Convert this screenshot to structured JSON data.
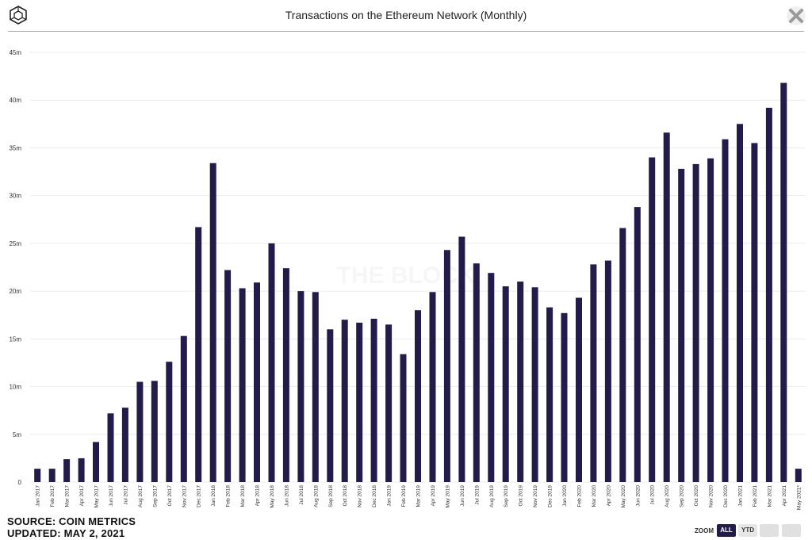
{
  "header": {
    "title": "Transactions on the Ethereum Network (Monthly)",
    "logo_icon": "cube-logo-icon",
    "close_icon": "close-icon"
  },
  "footer": {
    "source": "SOURCE: COIN METRICS",
    "updated": "UPDATED: MAY 2, 2021"
  },
  "zoom": {
    "label": "ZOOM",
    "all_label": "ALL",
    "ytd_label": "YTD"
  },
  "watermark": "THE BLOCK",
  "colors": {
    "bar": "#231c4b",
    "accent": "#b49ad6",
    "grid": "#ececec"
  },
  "chart_data": {
    "type": "bar",
    "title": "Transactions on the Ethereum Network (Monthly)",
    "xlabel": "",
    "ylabel": "",
    "ylim": [
      0,
      45
    ],
    "yticks": [
      "0",
      "5m",
      "10m",
      "15m",
      "20m",
      "25m",
      "30m",
      "35m",
      "40m",
      "45m"
    ],
    "grid": true,
    "legend": "none",
    "categories": [
      "Jan 2017",
      "Feb 2017",
      "Mar 2017",
      "Apr 2017",
      "May 2017",
      "Jun 2017",
      "Jul 2017",
      "Aug 2017",
      "Sep 2017",
      "Oct 2017",
      "Nov 2017",
      "Dec 2017",
      "Jan 2018",
      "Feb 2018",
      "Mar 2018",
      "Apr 2018",
      "May 2018",
      "Jun 2018",
      "Jul 2018",
      "Aug 2018",
      "Sep 2018",
      "Oct 2018",
      "Nov 2018",
      "Dec 2018",
      "Jan 2019",
      "Feb 2019",
      "Mar 2019",
      "Apr 2019",
      "May 2019",
      "Jun 2019",
      "Jul 2019",
      "Aug 2019",
      "Sep 2019",
      "Oct 2019",
      "Nov 2019",
      "Dec 2019",
      "Jan 2020",
      "Feb 2020",
      "Mar 2020",
      "Apr 2020",
      "May 2020",
      "Jun 2020",
      "Jul 2020",
      "Aug 2020",
      "Sep 2020",
      "Oct 2020",
      "Nov 2020",
      "Dec 2020",
      "Jan 2021",
      "Feb 2021",
      "Mar 2021",
      "Apr 2021",
      "May 2021*"
    ],
    "series": [
      {
        "values": [
          1.4,
          1.4,
          2.4,
          2.5,
          4.2,
          7.2,
          7.8,
          10.5,
          10.6,
          12.6,
          15.3,
          26.7,
          33.4,
          22.2,
          20.3,
          20.9,
          25.0,
          22.4,
          20.0,
          19.9,
          16.0,
          17.0,
          16.7,
          17.1,
          16.5,
          13.4,
          18.0,
          19.9,
          24.3,
          25.7,
          22.9,
          21.9,
          20.5,
          21.0,
          20.4,
          18.3,
          17.7,
          19.3,
          22.8,
          23.2,
          26.6,
          28.8,
          34.0,
          36.6,
          32.8,
          33.3,
          33.9,
          35.9,
          37.5,
          35.5,
          39.2,
          41.8,
          1.4
        ]
      }
    ]
  }
}
